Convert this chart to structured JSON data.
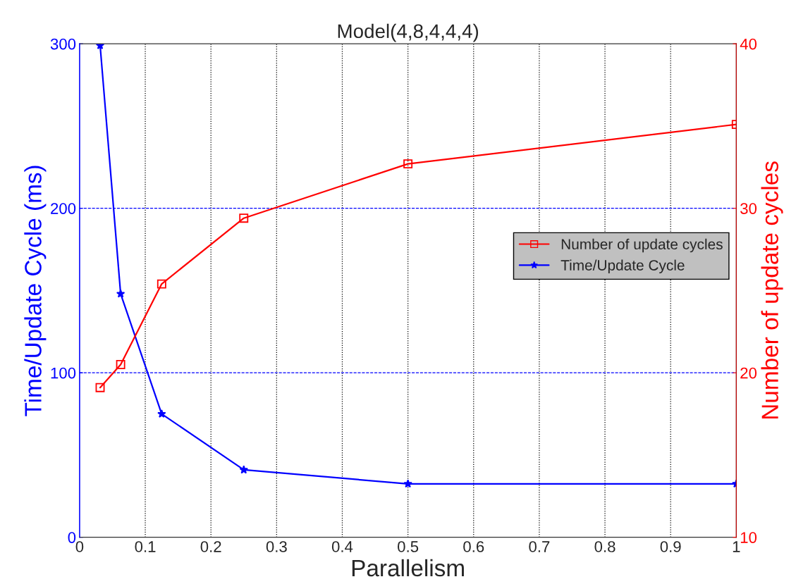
{
  "chart_data": {
    "type": "line",
    "title": "Model(4,8,4,4,4)",
    "xlabel": "Parallelism",
    "ylabel": "Time/Update Cycle (ms)",
    "y2label": "Number of update cycles",
    "x": [
      0.03125,
      0.0625,
      0.125,
      0.25,
      0.5,
      1
    ],
    "series": [
      {
        "name": "Number of update cycles",
        "color": "#ff0000",
        "axis": "y2",
        "marker": "square",
        "values": [
          19.1,
          20.5,
          25.4,
          29.4,
          32.7,
          35.1
        ]
      },
      {
        "name": "Time/Update Cycle",
        "color": "#0000ff",
        "marker": "star",
        "values": [
          299,
          148,
          75,
          41,
          32.5,
          32.5
        ]
      }
    ],
    "xlim": [
      0,
      1
    ],
    "xticks": [
      0,
      0.1,
      0.2,
      0.3,
      0.4,
      0.5,
      0.6,
      0.7,
      0.8,
      0.9,
      1
    ],
    "ylim": [
      0,
      300
    ],
    "yticks": [
      0,
      100,
      200,
      300
    ],
    "y2lim": [
      10,
      40
    ],
    "y2ticks": [
      10,
      20,
      30,
      40
    ],
    "grid": true,
    "legend": "right",
    "line_style": "solid"
  }
}
